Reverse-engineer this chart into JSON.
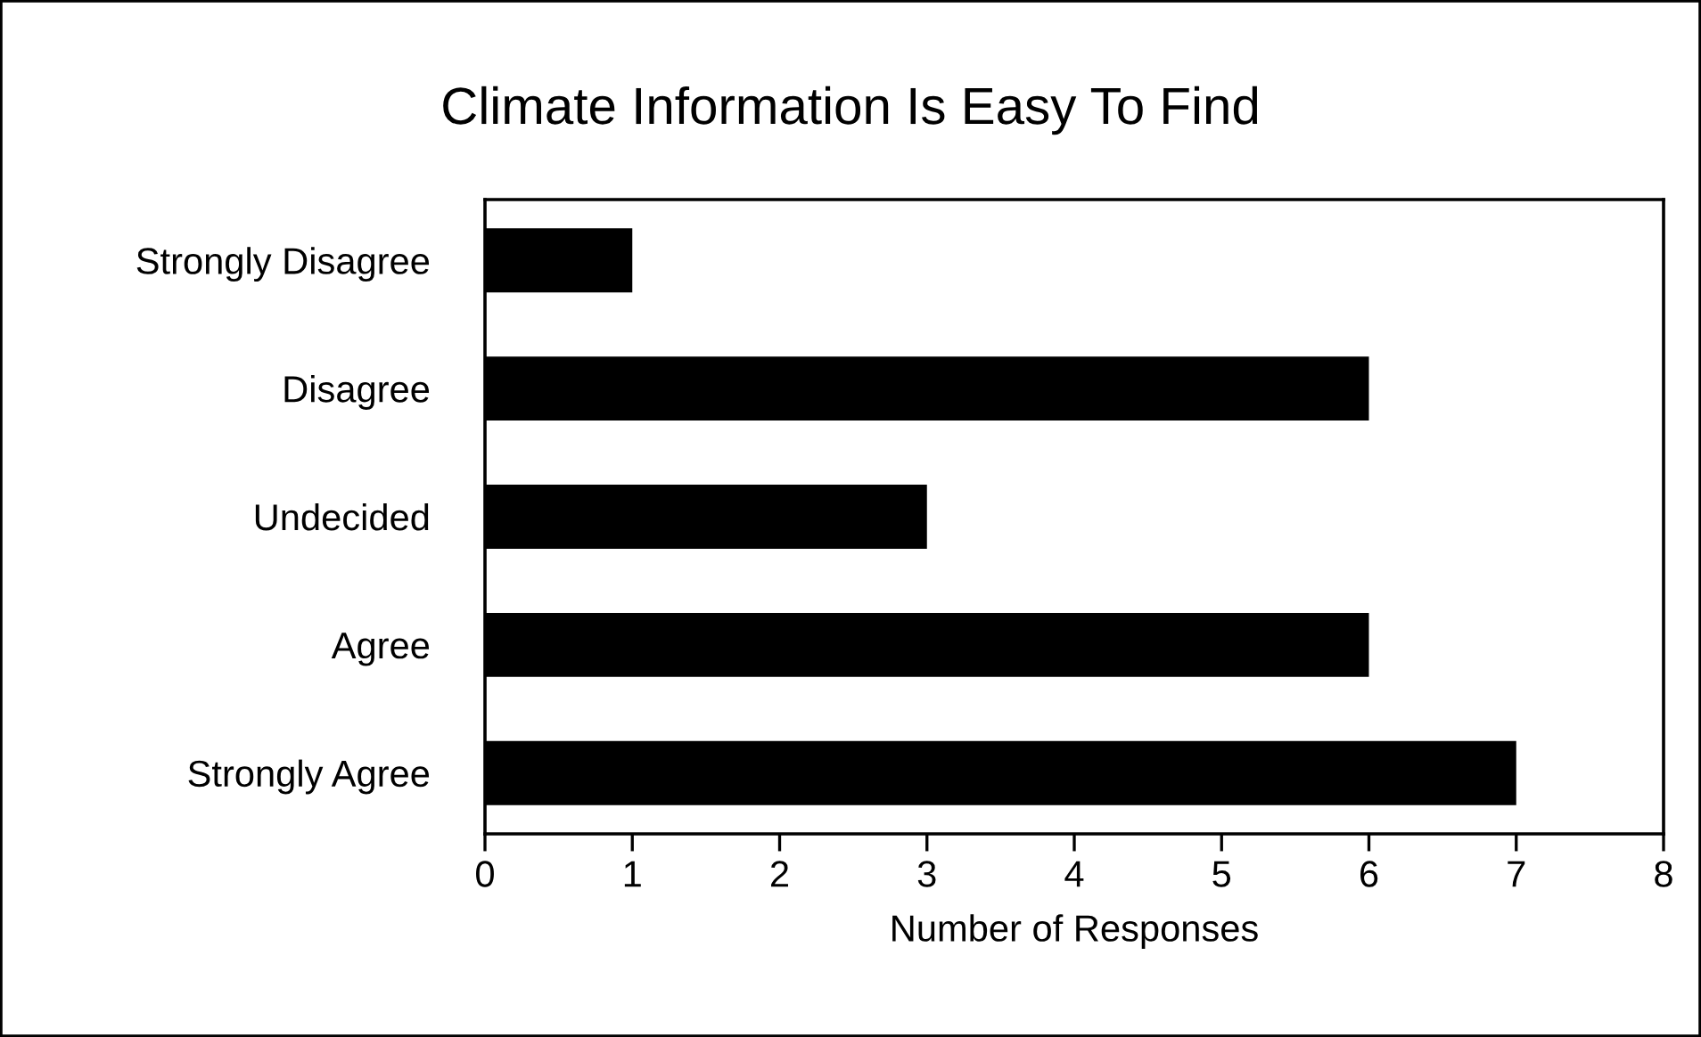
{
  "chart_data": {
    "type": "bar",
    "orientation": "horizontal",
    "title": "Climate Information Is Easy To Find",
    "xlabel": "Number of Responses",
    "categories": [
      "Strongly Disagree",
      "Disagree",
      "Undecided",
      "Agree",
      "Strongly Agree"
    ],
    "values": [
      1,
      6,
      3,
      6,
      7
    ],
    "color": "#000000",
    "xlim": [
      0,
      8
    ],
    "xticks": [
      0,
      1,
      2,
      3,
      4,
      5,
      6,
      7,
      8
    ],
    "grid": false,
    "legend": false
  }
}
